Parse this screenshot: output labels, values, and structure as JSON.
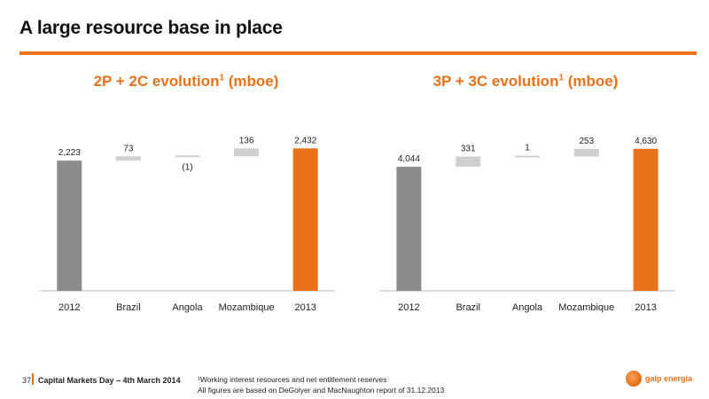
{
  "slide": {
    "title": "A large resource base in place",
    "footer": {
      "page": "37",
      "event": "Capital Markets Day – 4th March 2014",
      "footnote1": "¹Working interest resources and net entitlement reserves",
      "footnote2": "All figures are based on DeGolyer and MacNaughton report of 31.12.2013"
    },
    "logo_text": "galp energia"
  },
  "colors": {
    "accent": "#e8711a",
    "total_bar": "#8c8c8c",
    "step_bar": "#cfcfcf"
  },
  "chart_data": [
    {
      "type": "bar",
      "subtype": "waterfall",
      "title": "2P + 2C evolution",
      "title_sup": "1",
      "title_unit": "(mboe)",
      "categories": [
        "2012",
        "Brazil",
        "Angola",
        "Mozambique",
        "2013"
      ],
      "values": [
        2223,
        73,
        -1,
        136,
        2432
      ],
      "labels": [
        "2,223",
        "73",
        "(1)",
        "136",
        "2,432"
      ],
      "kinds": [
        "start",
        "step",
        "step",
        "step",
        "end"
      ],
      "ylim": [
        0,
        3300
      ]
    },
    {
      "type": "bar",
      "subtype": "waterfall",
      "title": "3P + 3C evolution",
      "title_sup": "1",
      "title_unit": "(mboe)",
      "categories": [
        "2012",
        "Brazil",
        "Angola",
        "Mozambique",
        "2013"
      ],
      "values": [
        4044,
        331,
        1,
        253,
        4630
      ],
      "labels": [
        "4,044",
        "331",
        "1",
        "253",
        "4,630"
      ],
      "kinds": [
        "start",
        "step",
        "step",
        "step",
        "end"
      ],
      "ylim": [
        0,
        6300
      ]
    }
  ]
}
